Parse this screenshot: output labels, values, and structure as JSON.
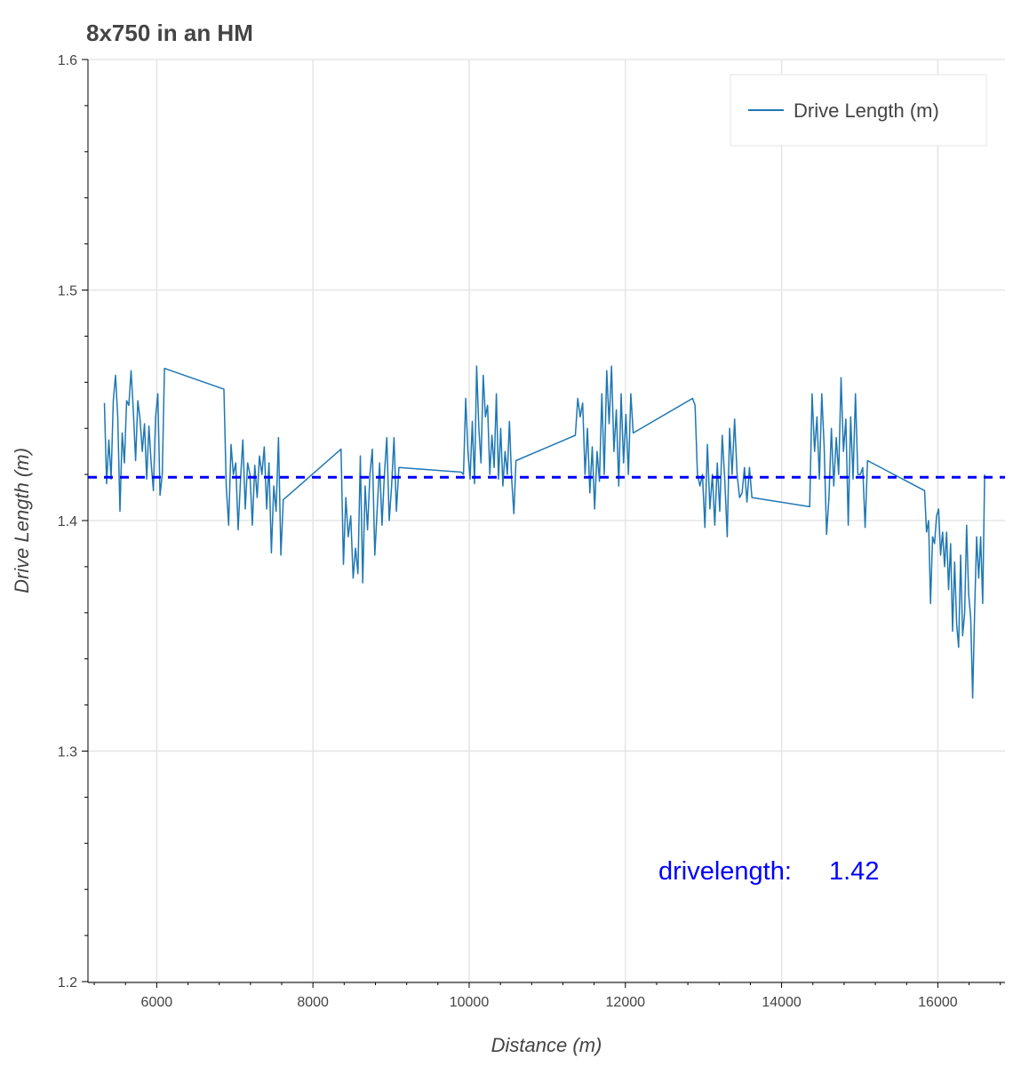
{
  "chart_data": {
    "type": "line",
    "title": "8x750 in an HM",
    "xlabel": "Distance (m)",
    "ylabel": "Drive Length (m)",
    "xlim": [
      5120,
      16860
    ],
    "ylim": [
      1.2,
      1.6
    ],
    "xticks": [
      6000,
      8000,
      10000,
      12000,
      14000,
      16000
    ],
    "yticks": [
      1.2,
      1.3,
      1.4,
      1.5,
      1.6
    ],
    "grid": true,
    "legend": {
      "position": "top-right",
      "entries": [
        "Drive Length (m)"
      ]
    },
    "series": [
      {
        "name": "Drive Length (m)",
        "color": "#1f77b4",
        "segments": [
          {
            "x_start": 5330,
            "x_end": 6100,
            "y": [
              1.451,
              1.416,
              1.435,
              1.418,
              1.452,
              1.463,
              1.445,
              1.404,
              1.438,
              1.425,
              1.452,
              1.45,
              1.465,
              1.448,
              1.426,
              1.452,
              1.444,
              1.43,
              1.442,
              1.418,
              1.441,
              1.425,
              1.413,
              1.445,
              1.455,
              1.411,
              1.42,
              1.466
            ]
          },
          {
            "x_start": 6860,
            "x_end": 7620,
            "y": [
              1.457,
              1.415,
              1.398,
              1.433,
              1.42,
              1.425,
              1.396,
              1.418,
              1.435,
              1.405,
              1.425,
              1.42,
              1.398,
              1.424,
              1.41,
              1.428,
              1.42,
              1.432,
              1.405,
              1.425,
              1.386,
              1.415,
              1.404,
              1.436,
              1.385,
              1.409
            ]
          },
          {
            "x_start": 8360,
            "x_end": 9100,
            "y": [
              1.431,
              1.381,
              1.41,
              1.393,
              1.402,
              1.375,
              1.388,
              1.377,
              1.428,
              1.373,
              1.415,
              1.396,
              1.42,
              1.431,
              1.385,
              1.405,
              1.425,
              1.398,
              1.42,
              1.436,
              1.4,
              1.415,
              1.436,
              1.404,
              1.423
            ]
          },
          {
            "x_start": 9900,
            "x_end": 10600,
            "y": [
              1.421,
              1.42,
              1.453,
              1.43,
              1.418,
              1.443,
              1.416,
              1.467,
              1.44,
              1.425,
              1.463,
              1.445,
              1.45,
              1.42,
              1.437,
              1.423,
              1.455,
              1.418,
              1.44,
              1.415,
              1.43,
              1.42,
              1.443,
              1.418,
              1.403,
              1.426
            ]
          },
          {
            "x_start": 11360,
            "x_end": 12100,
            "y": [
              1.437,
              1.453,
              1.445,
              1.451,
              1.42,
              1.44,
              1.412,
              1.432,
              1.405,
              1.43,
              1.417,
              1.455,
              1.42,
              1.465,
              1.442,
              1.467,
              1.43,
              1.448,
              1.415,
              1.455,
              1.425,
              1.446,
              1.42,
              1.455,
              1.438
            ]
          },
          {
            "x_start": 12860,
            "x_end": 13620,
            "y": [
              1.453,
              1.45,
              1.42,
              1.415,
              1.42,
              1.397,
              1.433,
              1.405,
              1.42,
              1.398,
              1.425,
              1.404,
              1.437,
              1.418,
              1.393,
              1.44,
              1.42,
              1.444,
              1.42,
              1.41,
              1.412,
              1.423,
              1.408,
              1.423,
              1.41
            ]
          },
          {
            "x_start": 14360,
            "x_end": 15100,
            "y": [
              1.406,
              1.455,
              1.43,
              1.445,
              1.418,
              1.455,
              1.432,
              1.394,
              1.41,
              1.44,
              1.415,
              1.436,
              1.42,
              1.462,
              1.43,
              1.444,
              1.398,
              1.445,
              1.418,
              1.455,
              1.42,
              1.42,
              1.423,
              1.397,
              1.426
            ]
          },
          {
            "x_start": 15830,
            "x_end": 16600,
            "y": [
              1.413,
              1.395,
              1.4,
              1.364,
              1.393,
              1.39,
              1.402,
              1.405,
              1.385,
              1.395,
              1.38,
              1.395,
              1.37,
              1.39,
              1.352,
              1.382,
              1.355,
              1.345,
              1.385,
              1.35,
              1.36,
              1.398,
              1.368,
              1.358,
              1.323,
              1.362,
              1.393,
              1.375,
              1.393,
              1.364,
              1.42
            ]
          }
        ]
      }
    ],
    "reference_line": {
      "y": 1.4188,
      "color": "#0000ff",
      "style": "dashed"
    },
    "annotation": {
      "label": "drivelength:",
      "value": "1.42",
      "color": "#0000ff"
    }
  }
}
